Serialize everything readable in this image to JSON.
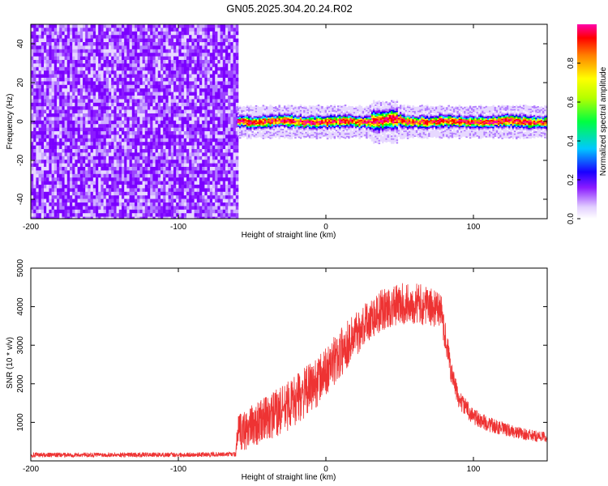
{
  "title": "GN05.2025.304.20.24.R02",
  "colorbar": {
    "label": "Normalized spectral amplitude",
    "range": [
      0,
      1
    ],
    "ticks": [
      "0.0",
      "0.2",
      "0.4",
      "0.6",
      "0.8"
    ],
    "tick_values": [
      0.0,
      0.2,
      0.4,
      0.6,
      0.8
    ]
  },
  "chart_data": [
    {
      "type": "heatmap",
      "title": "GN05.2025.304.20.24.R02",
      "xlabel": "Height of straight line (km)",
      "ylabel": "Frequency (Hz)",
      "xlim": [
        -200,
        150
      ],
      "ylim": [
        -50,
        50
      ],
      "xticks": [
        -200,
        -100,
        0,
        100
      ],
      "yticks": [
        -40,
        -20,
        0,
        20,
        40
      ],
      "xtick_labels": [
        "-200",
        "-100",
        "0",
        "100"
      ],
      "ytick_labels": [
        "-40",
        "-20",
        "0",
        "20",
        "40"
      ],
      "regions": [
        {
          "name": "noise",
          "x_range": [
            -200,
            -60
          ],
          "freq_range": [
            -50,
            50
          ],
          "amplitude_range": [
            0.0,
            0.25
          ]
        },
        {
          "name": "signal",
          "x_range": [
            -60,
            150
          ],
          "center_freq": 0,
          "halfwidth_hz": 4,
          "peak_amplitude": 1.0
        }
      ],
      "colormap": [
        "#ffffff",
        "#e7d8ff",
        "#b27dff",
        "#7b00ff",
        "#0000ff",
        "#00e5ff",
        "#00ff00",
        "#ffff00",
        "#ff8000",
        "#ff0000",
        "#ff00a0"
      ]
    },
    {
      "type": "line",
      "xlabel": "Height of straight line (km)",
      "ylabel": "SNR (10 * v/v)",
      "xlim": [
        -200,
        150
      ],
      "ylim": [
        0,
        5000
      ],
      "xticks": [
        -200,
        -100,
        0,
        100
      ],
      "yticks": [
        1000,
        2000,
        3000,
        4000,
        5000
      ],
      "xtick_labels": [
        "-200",
        "-100",
        "0",
        "100"
      ],
      "ytick_labels": [
        "1000",
        "2000",
        "3000",
        "4000",
        "5000"
      ],
      "color": "#ee3333",
      "series": [
        {
          "name": "SNR",
          "x": [
            -200,
            -150,
            -100,
            -61,
            -60,
            -50,
            -40,
            -30,
            -20,
            -10,
            0,
            10,
            20,
            30,
            40,
            50,
            60,
            70,
            78,
            82,
            85,
            90,
            100,
            110,
            120,
            130,
            140,
            150
          ],
          "y": [
            150,
            160,
            160,
            170,
            700,
            900,
            1100,
            1300,
            1600,
            1900,
            2300,
            2800,
            3300,
            3700,
            3950,
            4050,
            4100,
            4000,
            3900,
            3000,
            2300,
            1600,
            1150,
            950,
            830,
            730,
            650,
            620
          ],
          "noise_amplitude": [
            60,
            60,
            60,
            60,
            500,
            550,
            600,
            650,
            650,
            650,
            650,
            650,
            600,
            550,
            550,
            550,
            550,
            500,
            450,
            400,
            300,
            250,
            220,
            200,
            180,
            160,
            150,
            140
          ]
        }
      ]
    }
  ]
}
